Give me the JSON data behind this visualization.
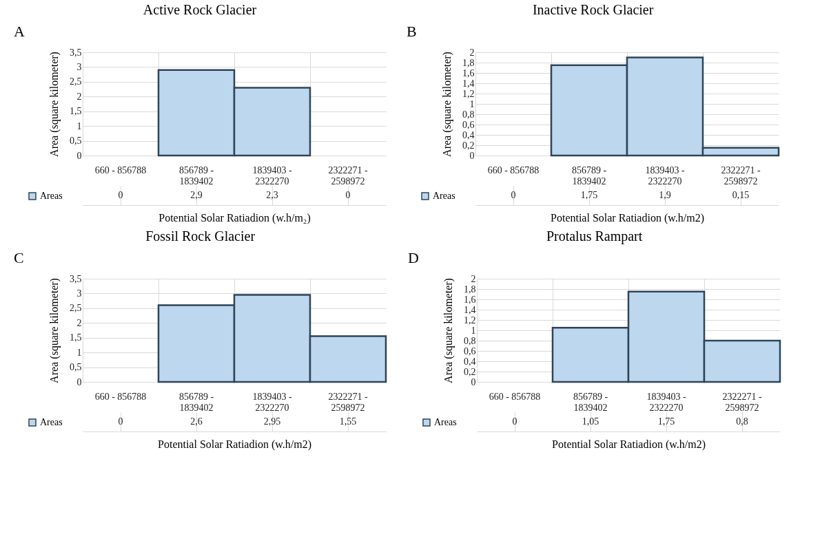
{
  "chart_data": [
    {
      "type": "bar",
      "title": "Active Rock Glacier",
      "xlabel": "Potential Solar Ratiadion (w.h/m₂)",
      "ylabel": "Area (square kilometer)",
      "annotations": [
        "A"
      ],
      "categories": [
        "660 - 856788",
        "856789 - 1839402",
        "1839403 - 2322270",
        "2322271 - 2598972"
      ],
      "series": [
        {
          "name": "Areas",
          "color": "#bdd7ee",
          "values": [
            0,
            2.9,
            2.3,
            0
          ],
          "value_labels": [
            "0",
            "2,9",
            "2,3",
            "0"
          ]
        }
      ],
      "ylim": [
        0,
        3.5
      ],
      "yticks": [
        0,
        {
          "value": 0.5,
          "label": "0,5"
        },
        1,
        {
          "value": 1.5,
          "label": "1,5"
        },
        2,
        {
          "value": 2.5,
          "label": "2,5"
        },
        3,
        {
          "value": 3.5,
          "label": "3,5"
        }
      ],
      "grid": true,
      "legend": "bottom left"
    },
    {
      "type": "bar",
      "title": "Inactive Rock Glacier",
      "xlabel": "Potential Solar Ratiadion (w.h/m2)",
      "ylabel": "Area (square kilometer)",
      "annotations": [
        "B"
      ],
      "categories": [
        "660 - 856788",
        "856789 - 1839402",
        "1839403 - 2322270",
        "2322271 - 2598972"
      ],
      "series": [
        {
          "name": "Areas",
          "color": "#bdd7ee",
          "values": [
            0,
            1.75,
            1.9,
            0.15
          ],
          "value_labels": [
            "0",
            "1,75",
            "1,9",
            "0,15"
          ]
        }
      ],
      "ylim": [
        0,
        2
      ],
      "yticks": [
        0,
        {
          "value": 0.2,
          "label": "0,2"
        },
        {
          "value": 0.4,
          "label": "0,4"
        },
        {
          "value": 0.6,
          "label": "0,6"
        },
        {
          "value": 0.8,
          "label": "0,8"
        },
        1,
        {
          "value": 1.2,
          "label": "1,2"
        },
        {
          "value": 1.4,
          "label": "1,4"
        },
        {
          "value": 1.6,
          "label": "1,6"
        },
        {
          "value": 1.8,
          "label": "1,8"
        },
        2
      ],
      "grid": true,
      "legend": "bottom left"
    },
    {
      "type": "bar",
      "title": "Fossil Rock Glacier",
      "xlabel": "Potential Solar Ratiadion (w.h/m2)",
      "ylabel": "Area (square kilometer)",
      "annotations": [
        "C"
      ],
      "categories": [
        "660 - 856788",
        "856789 - 1839402",
        "1839403 - 2322270",
        "2322271 - 2598972"
      ],
      "series": [
        {
          "name": "Areas",
          "color": "#bdd7ee",
          "values": [
            0,
            2.6,
            2.95,
            1.55
          ],
          "value_labels": [
            "0",
            "2,6",
            "2,95",
            "1,55"
          ]
        }
      ],
      "ylim": [
        0,
        3.5
      ],
      "yticks": [
        0,
        {
          "value": 0.5,
          "label": "0,5"
        },
        1,
        {
          "value": 1.5,
          "label": "1,5"
        },
        2,
        {
          "value": 2.5,
          "label": "2,5"
        },
        3,
        {
          "value": 3.5,
          "label": "3,5"
        }
      ],
      "grid": true,
      "legend": "bottom left"
    },
    {
      "type": "bar",
      "title": "Protalus Rampart",
      "xlabel": "Potential Solar Ratiadion (w.h/m2)",
      "ylabel": "Area (square kilometer)",
      "annotations": [
        "D"
      ],
      "categories": [
        "660 - 856788",
        "856789 - 1839402",
        "1839403 - 2322270",
        "2322271 - 2598972"
      ],
      "series": [
        {
          "name": "Areas",
          "color": "#bdd7ee",
          "values": [
            0,
            1.05,
            1.75,
            0.8
          ],
          "value_labels": [
            "0",
            "1,05",
            "1,75",
            "0,8"
          ]
        }
      ],
      "ylim": [
        0,
        2
      ],
      "yticks": [
        0,
        {
          "value": 0.2,
          "label": "0,2"
        },
        {
          "value": 0.4,
          "label": "0,4"
        },
        {
          "value": 0.6,
          "label": "0,6"
        },
        {
          "value": 0.8,
          "label": "0,8"
        },
        1,
        {
          "value": 1.2,
          "label": "1,2"
        },
        {
          "value": 1.4,
          "label": "1,4"
        },
        {
          "value": 1.6,
          "label": "1,6"
        },
        {
          "value": 1.8,
          "label": "1,8"
        },
        2
      ],
      "grid": true,
      "legend": "bottom left"
    }
  ]
}
